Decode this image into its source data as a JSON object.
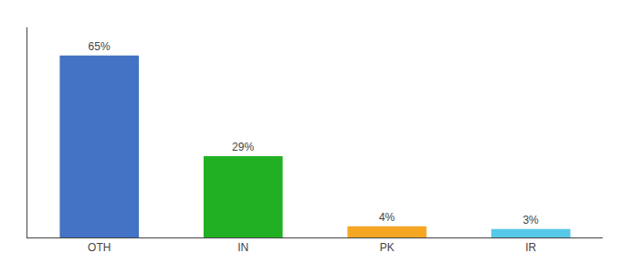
{
  "chart_data": {
    "type": "bar",
    "categories": [
      "OTH",
      "IN",
      "PK",
      "IR"
    ],
    "values": [
      65,
      29,
      4,
      3
    ],
    "value_labels": [
      "65%",
      "29%",
      "4%",
      "3%"
    ],
    "colors": [
      "#4472c4",
      "#21b024",
      "#f5a623",
      "#56c8e8"
    ],
    "ylim": [
      0,
      75
    ],
    "grid": false,
    "data_labels": true,
    "tick_labels": "x"
  }
}
